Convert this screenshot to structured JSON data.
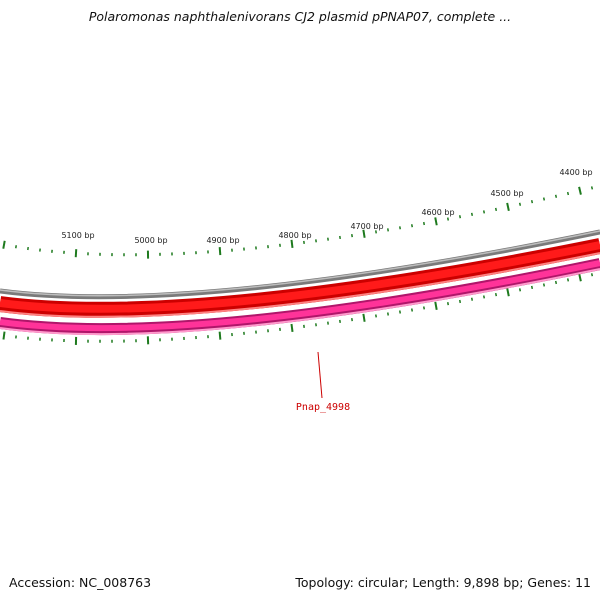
{
  "title": "Polaromonas naphthalenivorans CJ2 plasmid pPNAP07, complete ...",
  "footer": {
    "accession": "Accession: NC_008763",
    "summary": "Topology: circular; Length: 9,898 bp; Genes: 11"
  },
  "colors": {
    "ticks": "#1e7a1e",
    "backbone_outer": "#7a7a7a",
    "backbone_inner": "#bdbdbd",
    "forward_dark": "#cc0000",
    "forward_bright": "#ff1a1a",
    "forward_light": "#ff8080",
    "reverse_dark": "#b0166a",
    "reverse_bright": "#ff3399",
    "reverse_light": "#ff99cc",
    "gene_label": "#cc0000"
  },
  "map": {
    "tick_labels": [
      "5100 bp",
      "5000 bp",
      "4900 bp",
      "4800 bp",
      "4700 bp",
      "4600 bp",
      "4500 bp",
      "4400 bp"
    ],
    "gene_label": "Pnap_4998"
  }
}
